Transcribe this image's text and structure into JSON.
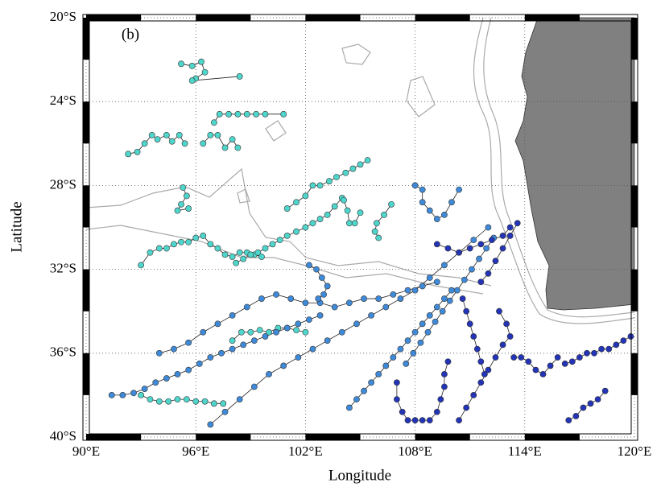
{
  "chart_data": {
    "type": "map",
    "panel_label": "(b)",
    "x_label": "Longitude",
    "y_label": "Latitude",
    "xlim": [
      90,
      120
    ],
    "ylim": [
      -40,
      -20
    ],
    "xticks": [
      {
        "value": 90,
        "label": "90°E"
      },
      {
        "value": 96,
        "label": "96°E"
      },
      {
        "value": 102,
        "label": "102°E"
      },
      {
        "value": 108,
        "label": "108°E"
      },
      {
        "value": 114,
        "label": "114°E"
      },
      {
        "value": 120,
        "label": "120°E"
      }
    ],
    "yticks": [
      {
        "value": -20,
        "label": "20°S"
      },
      {
        "value": -24,
        "label": "24°S"
      },
      {
        "value": -28,
        "label": "28°S"
      },
      {
        "value": -32,
        "label": "32°S"
      },
      {
        "value": -36,
        "label": "36°S"
      },
      {
        "value": -40,
        "label": "40°S"
      }
    ],
    "grid": true,
    "series": [
      {
        "color": "#4fd6cc",
        "x": [
          95.2,
          95.8,
          96.3,
          96.5,
          96.0,
          95.8,
          98.4
        ],
        "values": [
          -22.2,
          -22.3,
          -22.1,
          -22.6,
          -22.9,
          -23.0,
          -22.8
        ]
      },
      {
        "color": "#4fd6cc",
        "x": [
          97.0,
          97.3,
          97.8,
          98.3,
          98.8,
          99.3,
          99.8,
          100.8
        ],
        "values": [
          -25.0,
          -24.6,
          -24.6,
          -24.6,
          -24.6,
          -24.6,
          -24.6,
          -24.6
        ]
      },
      {
        "color": "#4fd6cc",
        "x": [
          92.3,
          92.8,
          93.2,
          93.6,
          93.9,
          94.4,
          94.7,
          95.1,
          95.4
        ],
        "values": [
          -26.5,
          -26.4,
          -26.0,
          -25.6,
          -25.8,
          -25.6,
          -25.9,
          -25.6,
          -26.0
        ]
      },
      {
        "color": "#4fd6cc",
        "x": [
          96.4,
          96.8,
          97.2,
          97.6,
          98.0,
          98.3
        ],
        "values": [
          -26.0,
          -25.6,
          -25.6,
          -26.2,
          -25.8,
          -26.2
        ]
      },
      {
        "color": "#4fd6cc",
        "x": [
          95.3,
          95.5,
          95.2,
          95.0,
          95.6
        ],
        "values": [
          -28.1,
          -28.5,
          -28.9,
          -29.2,
          -29.1
        ]
      },
      {
        "color": "#4fd6cc",
        "x": [
          93.0,
          93.5,
          94.0,
          94.4,
          94.8,
          95.2,
          95.6,
          96.0,
          96.4,
          96.8,
          97.2,
          97.6,
          98.0,
          98.4,
          98.8,
          99.2,
          99.6
        ],
        "values": [
          -31.8,
          -31.2,
          -31.0,
          -31.0,
          -30.8,
          -30.7,
          -30.7,
          -30.5,
          -30.4,
          -30.8,
          -31.0,
          -31.3,
          -31.4,
          -31.2,
          -31.2,
          -31.3,
          -31.4
        ]
      },
      {
        "color": "#4fd6cc",
        "x": [
          98.2,
          98.6,
          99.0,
          99.4,
          99.8,
          100.2,
          100.6,
          101.0,
          101.5,
          102.0,
          102.4,
          102.8,
          103.2,
          103.6,
          104.0
        ],
        "values": [
          -31.7,
          -31.5,
          -31.3,
          -31.2,
          -31.0,
          -30.8,
          -30.6,
          -30.4,
          -30.2,
          -30.0,
          -29.8,
          -29.6,
          -29.4,
          -29.0,
          -28.6
        ]
      },
      {
        "color": "#4fd6cc",
        "x": [
          101.0,
          101.5,
          102.0,
          102.4,
          102.8,
          103.3,
          103.7,
          104.2,
          104.6,
          105.0,
          105.4
        ],
        "values": [
          -29.1,
          -28.8,
          -28.5,
          -28.0,
          -28.0,
          -27.8,
          -27.6,
          -27.4,
          -27.2,
          -27.0,
          -26.8
        ]
      },
      {
        "color": "#4fd6cc",
        "x": [
          104.1,
          104.3,
          104.4,
          104.7,
          105.0
        ],
        "values": [
          -28.7,
          -29.2,
          -29.8,
          -29.8,
          -29.3
        ]
      },
      {
        "color": "#4fd6cc",
        "x": [
          106.0,
          105.8,
          105.9,
          106.3,
          106.7
        ],
        "values": [
          -30.5,
          -30.2,
          -29.8,
          -29.4,
          -28.9
        ]
      },
      {
        "color": "#4fd6cc",
        "x": [
          93.0,
          93.5,
          94.0,
          94.5,
          95.0,
          95.5,
          96.0,
          96.5,
          97.0,
          97.5
        ],
        "values": [
          -38.0,
          -38.2,
          -38.3,
          -38.3,
          -38.2,
          -38.2,
          -38.3,
          -38.3,
          -38.4,
          -38.4
        ]
      },
      {
        "color": "#4fd6cc",
        "x": [
          98.0,
          98.5,
          99.0,
          99.5,
          100.0,
          100.5,
          101.0,
          101.5,
          102.0
        ],
        "values": [
          -35.4,
          -35.0,
          -35.0,
          -34.9,
          -35.0,
          -34.8,
          -34.8,
          -34.9,
          -35.0
        ]
      },
      {
        "color": "#3f8ad8",
        "x": [
          91.4,
          92.0,
          92.6,
          93.2,
          93.8,
          94.4,
          95.0,
          95.6,
          96.2,
          96.8,
          97.4,
          98.0,
          98.6,
          99.2,
          99.8,
          100.4,
          101.0,
          101.6,
          102.2,
          102.8
        ],
        "values": [
          -38.0,
          -38.0,
          -37.9,
          -37.7,
          -37.4,
          -37.2,
          -37.0,
          -36.8,
          -36.5,
          -36.2,
          -36.0,
          -35.8,
          -35.6,
          -35.4,
          -35.2,
          -35.0,
          -34.8,
          -34.6,
          -34.4,
          -34.2
        ]
      },
      {
        "color": "#3f8ad8",
        "x": [
          94.0,
          94.8,
          95.6,
          96.4,
          97.2,
          98.0,
          98.8,
          99.6,
          100.4,
          101.2,
          102.0,
          102.8,
          103.6,
          104.4,
          105.2,
          106.0,
          106.8,
          107.6,
          108.4,
          109.2
        ],
        "values": [
          -36.0,
          -35.8,
          -35.5,
          -35.0,
          -34.6,
          -34.2,
          -33.8,
          -33.4,
          -33.2,
          -33.4,
          -33.6,
          -33.6,
          -33.8,
          -33.6,
          -33.4,
          -33.4,
          -33.2,
          -33.0,
          -32.8,
          -32.6
        ]
      },
      {
        "color": "#3f8ad8",
        "x": [
          96.8,
          97.6,
          98.4,
          99.2,
          100.0,
          100.8,
          101.6,
          102.4,
          103.2,
          104.0,
          104.8,
          105.6,
          106.4,
          107.2,
          108.0,
          108.8,
          109.6,
          110.4,
          111.2,
          112.0
        ],
        "values": [
          -39.4,
          -38.8,
          -38.2,
          -37.6,
          -37.0,
          -36.6,
          -36.2,
          -35.8,
          -35.4,
          -35.0,
          -34.6,
          -34.2,
          -33.8,
          -33.4,
          -33.0,
          -32.4,
          -31.8,
          -31.2,
          -30.6,
          -30.0
        ]
      },
      {
        "color": "#3f8ad8",
        "x": [
          104.4,
          104.8,
          105.2,
          105.6,
          106.0,
          106.4,
          106.8,
          107.2,
          107.6,
          108.0,
          108.4,
          108.8,
          109.2,
          109.6,
          110.0
        ],
        "values": [
          -38.6,
          -38.2,
          -37.8,
          -37.4,
          -37.0,
          -36.6,
          -36.2,
          -35.8,
          -35.4,
          -35.0,
          -34.6,
          -34.2,
          -33.8,
          -33.4,
          -33.0
        ]
      },
      {
        "color": "#3f8ad8",
        "x": [
          107.5,
          107.9,
          108.3,
          108.7,
          109.1,
          109.5,
          109.9,
          110.3,
          110.7,
          111.1,
          111.5,
          111.9,
          112.3
        ],
        "values": [
          -36.5,
          -36.0,
          -35.5,
          -35.0,
          -34.5,
          -34.0,
          -33.5,
          -33.0,
          -32.5,
          -32.0,
          -31.5,
          -31.0,
          -30.5
        ]
      },
      {
        "color": "#3f8ad8",
        "x": [
          108.0,
          108.4,
          108.4,
          108.8,
          109.2,
          109.6,
          110.0,
          110.4
        ],
        "values": [
          -28.0,
          -28.2,
          -28.8,
          -29.2,
          -29.6,
          -29.4,
          -28.8,
          -28.2
        ]
      },
      {
        "color": "#3f8ad8",
        "x": [
          102.2,
          102.6,
          102.9,
          103.2,
          103.0,
          102.7
        ],
        "values": [
          -31.8,
          -32.0,
          -32.4,
          -32.8,
          -33.2,
          -33.4
        ]
      },
      {
        "color": "#2334b6",
        "x": [
          107.0,
          107.0,
          107.3,
          107.6,
          108.0,
          108.4,
          108.8,
          109.2,
          109.4,
          109.6,
          109.6,
          109.8
        ],
        "values": [
          -37.4,
          -38.2,
          -38.8,
          -39.2,
          -39.2,
          -39.2,
          -39.2,
          -38.8,
          -38.2,
          -37.6,
          -37.0,
          -36.4
        ]
      },
      {
        "color": "#2334b6",
        "x": [
          110.4,
          110.8,
          111.2,
          111.6,
          112.0,
          112.4,
          112.8,
          113.2,
          113.0,
          112.6
        ],
        "values": [
          -39.2,
          -38.6,
          -38.0,
          -37.4,
          -36.8,
          -36.2,
          -35.6,
          -35.2,
          -34.6,
          -34.0
        ]
      },
      {
        "color": "#2334b6",
        "x": [
          111.6,
          112.0,
          112.4,
          112.8,
          113.2,
          113.6
        ],
        "values": [
          -32.6,
          -32.2,
          -31.6,
          -31.0,
          -30.4,
          -29.8
        ]
      },
      {
        "color": "#2334b6",
        "x": [
          109.2,
          109.8,
          110.4,
          111.0,
          111.6,
          112.2,
          112.8,
          113.2
        ],
        "values": [
          -30.8,
          -31.0,
          -31.2,
          -31.0,
          -30.8,
          -30.6,
          -30.4,
          -30.0
        ]
      },
      {
        "color": "#2334b6",
        "x": [
          113.4,
          113.8,
          114.2,
          114.6,
          115.0,
          115.4,
          115.8
        ],
        "values": [
          -36.2,
          -36.2,
          -36.4,
          -36.8,
          -37.0,
          -36.6,
          -36.2
        ]
      },
      {
        "color": "#2334b6",
        "x": [
          116.2,
          116.6,
          117.0,
          117.4,
          117.8,
          118.2,
          118.6,
          119.0,
          119.4,
          119.8
        ],
        "values": [
          -36.5,
          -36.4,
          -36.2,
          -36.0,
          -36.0,
          -35.8,
          -35.8,
          -35.6,
          -35.4,
          -35.2
        ]
      },
      {
        "color": "#2334b6",
        "x": [
          116.4,
          116.8,
          117.2,
          117.6,
          118.0,
          118.4
        ],
        "values": [
          -39.2,
          -39.0,
          -38.6,
          -38.4,
          -38.2,
          -37.8
        ]
      },
      {
        "color": "#2334b6",
        "x": [
          110.6,
          110.8,
          111.0,
          111.2,
          111.4,
          111.6,
          111.8
        ],
        "values": [
          -33.4,
          -34.0,
          -34.6,
          -35.2,
          -35.8,
          -36.4,
          -37.0
        ]
      }
    ]
  }
}
